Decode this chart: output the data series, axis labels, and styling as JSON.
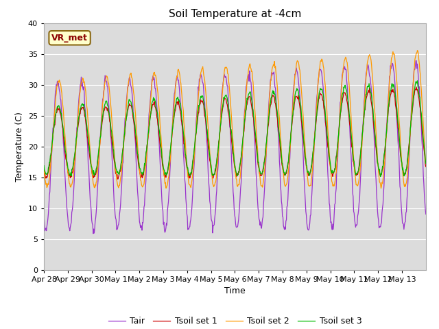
{
  "title": "Soil Temperature at -4cm",
  "xlabel": "Time",
  "ylabel": "Temperature (C)",
  "ylim": [
    0,
    40
  ],
  "background_color": "#dcdcdc",
  "fig_bg_color": "#ffffff",
  "grid_color": "#ffffff",
  "colors": {
    "Tair": "#9933cc",
    "Tsoil_set1": "#cc0000",
    "Tsoil_set2": "#ff9900",
    "Tsoil_set3": "#00bb00"
  },
  "legend_labels": [
    "Tair",
    "Tsoil set 1",
    "Tsoil set 2",
    "Tsoil set 3"
  ],
  "x_tick_labels": [
    "Apr 28",
    "Apr 29",
    "Apr 30",
    "May 1",
    "May 2",
    "May 3",
    "May 4",
    "May 5",
    "May 6",
    "May 7",
    "May 8",
    "May 9",
    "May 10",
    "May 11",
    "May 12",
    "May 13"
  ],
  "annotation_text": "VR_met",
  "title_fontsize": 11,
  "label_fontsize": 9,
  "tick_fontsize": 8
}
